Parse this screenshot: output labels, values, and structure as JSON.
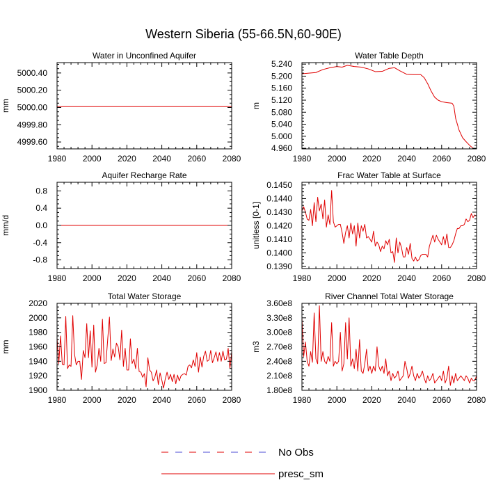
{
  "page": {
    "title": "Western Siberia (55-66.5N,60-90E)"
  },
  "legend": {
    "items": [
      {
        "label": "No Obs",
        "color": "#4b4bd6",
        "style": "dashed-blue-red"
      },
      {
        "label": "presc_sm",
        "color": "#e00000",
        "style": "solid"
      }
    ]
  },
  "chart_data": [
    {
      "type": "line",
      "title": "Water in Unconfined Aquifer",
      "xlabel": "",
      "ylabel": "mm",
      "xlim": [
        1980,
        2080
      ],
      "ylim": [
        4999.52,
        5000.52
      ],
      "xticks": [
        1980,
        2000,
        2020,
        2040,
        2060,
        2080
      ],
      "xtick_labels": [
        "1980",
        "2000",
        "2020",
        "2040",
        "2060",
        "2080"
      ],
      "yticks": [
        4999.6,
        4999.8,
        5000.0,
        5000.2,
        5000.4
      ],
      "ytick_labels": [
        "4999.60",
        "4999.80",
        "5000.00",
        "5000.20",
        "5000.40"
      ],
      "series": [
        {
          "name": "presc_sm",
          "color": "#e00000",
          "x": [
            1980,
            2000,
            2020,
            2040,
            2060,
            2080
          ],
          "y": [
            5000.01,
            5000.01,
            5000.01,
            5000.01,
            5000.01,
            5000.01
          ]
        }
      ]
    },
    {
      "type": "line",
      "title": "Water Table Depth",
      "xlabel": "",
      "ylabel": "m",
      "xlim": [
        1980,
        2080
      ],
      "ylim": [
        4.958,
        5.245
      ],
      "xticks": [
        1980,
        2000,
        2020,
        2040,
        2060,
        2080
      ],
      "xtick_labels": [
        "1980",
        "2000",
        "2020",
        "2040",
        "2060",
        "2080"
      ],
      "yticks": [
        4.96,
        5.0,
        5.04,
        5.08,
        5.12,
        5.16,
        5.2,
        5.24
      ],
      "ytick_labels": [
        "4.960",
        "5.000",
        "5.040",
        "5.080",
        "5.120",
        "5.160",
        "5.200",
        "5.240"
      ],
      "series": [
        {
          "name": "presc_sm",
          "color": "#e00000",
          "x": [
            1980,
            1984,
            1988,
            1992,
            1996,
            2000,
            2003,
            2006,
            2010,
            2014,
            2018,
            2022,
            2026,
            2030,
            2033,
            2036,
            2040,
            2044,
            2048,
            2050,
            2052,
            2054,
            2056,
            2058,
            2060,
            2063,
            2066,
            2067,
            2068,
            2070,
            2072,
            2074,
            2076,
            2078,
            2080
          ],
          "y": [
            5.208,
            5.21,
            5.212,
            5.222,
            5.228,
            5.232,
            5.23,
            5.236,
            5.232,
            5.23,
            5.224,
            5.215,
            5.216,
            5.226,
            5.228,
            5.218,
            5.206,
            5.205,
            5.205,
            5.195,
            5.175,
            5.15,
            5.13,
            5.12,
            5.115,
            5.112,
            5.11,
            5.1,
            5.06,
            5.02,
            4.995,
            4.982,
            4.97,
            4.96,
            4.958
          ]
        }
      ]
    },
    {
      "type": "line",
      "title": "Aquifer Recharge Rate",
      "xlabel": "",
      "ylabel": "mm/d",
      "xlim": [
        1980,
        2080
      ],
      "ylim": [
        -1.0,
        1.0
      ],
      "xticks": [
        1980,
        2000,
        2020,
        2040,
        2060,
        2080
      ],
      "xtick_labels": [
        "1980",
        "2000",
        "2020",
        "2040",
        "2060",
        "2080"
      ],
      "yticks": [
        -0.8,
        -0.4,
        0.0,
        0.4,
        0.8
      ],
      "ytick_labels": [
        "-0.8",
        "-0.4",
        "0.0",
        "0.4",
        "0.8"
      ],
      "series": [
        {
          "name": "presc_sm",
          "color": "#e00000",
          "x": [
            1980,
            2000,
            2020,
            2040,
            2060,
            2080
          ],
          "y": [
            0,
            0,
            0,
            0,
            0,
            0
          ]
        }
      ]
    },
    {
      "type": "line",
      "title": "Frac Water Table at Surface",
      "xlabel": "",
      "ylabel": "unitless [0-1]",
      "xlim": [
        1980,
        2080
      ],
      "ylim": [
        0.13885,
        0.1452
      ],
      "xticks": [
        1980,
        2000,
        2020,
        2040,
        2060,
        2080
      ],
      "xtick_labels": [
        "1980",
        "2000",
        "2020",
        "2040",
        "2060",
        "2080"
      ],
      "yticks": [
        0.139,
        0.14,
        0.141,
        0.142,
        0.143,
        0.144,
        0.145
      ],
      "ytick_labels": [
        "0.1390",
        "0.1400",
        "0.1410",
        "0.1420",
        "0.1430",
        "0.1440",
        "0.1450"
      ],
      "series": [
        {
          "name": "presc_sm",
          "color": "#e00000",
          "x": [
            1980,
            1981,
            1982,
            1983,
            1984,
            1985,
            1986,
            1987,
            1988,
            1989,
            1990,
            1991,
            1992,
            1993,
            1994,
            1995,
            1996,
            1997,
            1998,
            1999,
            2000,
            2001,
            2002,
            2003,
            2004,
            2005,
            2006,
            2007,
            2008,
            2009,
            2010,
            2011,
            2012,
            2013,
            2014,
            2015,
            2016,
            2017,
            2018,
            2019,
            2020,
            2021,
            2022,
            2023,
            2024,
            2025,
            2026,
            2027,
            2028,
            2029,
            2030,
            2031,
            2032,
            2033,
            2034,
            2035,
            2036,
            2037,
            2038,
            2039,
            2040,
            2041,
            2042,
            2043,
            2044,
            2045,
            2046,
            2047,
            2048,
            2049,
            2050,
            2051,
            2052,
            2053,
            2054,
            2055,
            2056,
            2057,
            2058,
            2059,
            2060,
            2061,
            2062,
            2063,
            2064,
            2065,
            2066,
            2067,
            2068,
            2069,
            2070,
            2071,
            2072,
            2073,
            2074,
            2075,
            2076,
            2077,
            2078,
            2079,
            2080
          ],
          "y": [
            0.1431,
            0.1434,
            0.143,
            0.1425,
            0.1424,
            0.1432,
            0.142,
            0.1437,
            0.1423,
            0.1441,
            0.1431,
            0.1436,
            0.1425,
            0.1439,
            0.1419,
            0.1428,
            0.1421,
            0.1446,
            0.1423,
            0.1419,
            0.142,
            0.1421,
            0.1421,
            0.1415,
            0.1407,
            0.1415,
            0.142,
            0.1411,
            0.1422,
            0.1414,
            0.142,
            0.1405,
            0.1422,
            0.1411,
            0.142,
            0.1416,
            0.1421,
            0.1411,
            0.1412,
            0.141,
            0.1408,
            0.1416,
            0.1405,
            0.1408,
            0.1406,
            0.1401,
            0.1405,
            0.1403,
            0.1409,
            0.1406,
            0.141,
            0.14,
            0.1401,
            0.1393,
            0.1411,
            0.14,
            0.1408,
            0.1404,
            0.1397,
            0.1397,
            0.1404,
            0.1399,
            0.1407,
            0.1396,
            0.1394,
            0.1397,
            0.1394,
            0.1395,
            0.1398,
            0.1399,
            0.1399,
            0.1399,
            0.1397,
            0.1405,
            0.1409,
            0.1413,
            0.1408,
            0.1413,
            0.141,
            0.1408,
            0.1406,
            0.1412,
            0.1406,
            0.1414,
            0.1404,
            0.1404,
            0.1406,
            0.1409,
            0.1414,
            0.1418,
            0.1418,
            0.142,
            0.142,
            0.1421,
            0.1425,
            0.1423,
            0.1424,
            0.1429,
            0.1426,
            0.1428,
            0.1427
          ]
        }
      ]
    },
    {
      "type": "line",
      "title": "Total Water Storage",
      "xlabel": "",
      "ylabel": "mm",
      "xlim": [
        1980,
        2080
      ],
      "ylim": [
        1900,
        2020
      ],
      "xticks": [
        1980,
        2000,
        2020,
        2040,
        2060,
        2080
      ],
      "xtick_labels": [
        "1980",
        "2000",
        "2020",
        "2040",
        "2060",
        "2080"
      ],
      "yticks": [
        1900,
        1920,
        1940,
        1960,
        1980,
        2000,
        2020
      ],
      "ytick_labels": [
        "1900",
        "1920",
        "1940",
        "1960",
        "1980",
        "2000",
        "2020"
      ],
      "series": [
        {
          "name": "presc_sm",
          "color": "#e00000",
          "x": [
            1980,
            1981,
            1982,
            1983,
            1984,
            1985,
            1986,
            1987,
            1988,
            1989,
            1990,
            1991,
            1992,
            1993,
            1994,
            1995,
            1996,
            1997,
            1998,
            1999,
            2000,
            2001,
            2002,
            2003,
            2004,
            2005,
            2006,
            2007,
            2008,
            2009,
            2010,
            2011,
            2012,
            2013,
            2014,
            2015,
            2016,
            2017,
            2018,
            2019,
            2020,
            2021,
            2022,
            2023,
            2024,
            2025,
            2026,
            2027,
            2028,
            2029,
            2030,
            2031,
            2032,
            2033,
            2034,
            2035,
            2036,
            2037,
            2038,
            2039,
            2040,
            2041,
            2042,
            2043,
            2044,
            2045,
            2046,
            2047,
            2048,
            2049,
            2050,
            2051,
            2052,
            2053,
            2054,
            2055,
            2056,
            2057,
            2058,
            2059,
            2060,
            2061,
            2062,
            2063,
            2064,
            2065,
            2066,
            2067,
            2068,
            2069,
            2070,
            2071,
            2072,
            2073,
            2074,
            2075,
            2076,
            2077,
            2078,
            2079,
            2080
          ],
          "y": [
            1972,
            1937,
            1975,
            1936,
            1935,
            2002,
            1930,
            1935,
            1933,
            2003,
            1950,
            1935,
            1940,
            1940,
            1915,
            1955,
            1945,
            1992,
            1945,
            1982,
            1932,
            1990,
            1925,
            1935,
            1958,
            1940,
            1998,
            1937,
            1938,
            1970,
            2001,
            1941,
            1957,
            1946,
            1965,
            1960,
            1942,
            1983,
            1933,
            1958,
            1928,
            1928,
            1971,
            1937,
            1943,
            1930,
            1958,
            1926,
            1925,
            1918,
            1923,
            1905,
            1945,
            1928,
            1925,
            1913,
            1918,
            1928,
            1908,
            1924,
            1914,
            1903,
            1916,
            1925,
            1915,
            1922,
            1912,
            1922,
            1909,
            1921,
            1913,
            1920,
            1922,
            1923,
            1921,
            1933,
            1935,
            1931,
            1942,
            1933,
            1952,
            1925,
            1946,
            1932,
            1947,
            1954,
            1940,
            1942,
            1955,
            1938,
            1945,
            1953,
            1940,
            1952,
            1940,
            1954,
            1942,
            1943,
            1958,
            1930,
            1953
          ]
        }
      ]
    },
    {
      "type": "line",
      "title": "River Channel Total Water Storage",
      "xlabel": "",
      "ylabel": "m3",
      "xlim": [
        1980,
        2080
      ],
      "ylim": [
        180000000.0,
        360000000.0
      ],
      "xticks": [
        1980,
        2000,
        2020,
        2040,
        2060,
        2080
      ],
      "xtick_labels": [
        "1980",
        "2000",
        "2020",
        "2040",
        "2060",
        "2080"
      ],
      "yticks": [
        180000000.0,
        210000000.0,
        240000000.0,
        270000000.0,
        300000000.0,
        330000000.0,
        360000000.0
      ],
      "ytick_labels": [
        "1.80e8",
        "2.10e8",
        "2.40e8",
        "2.70e8",
        "3.00e8",
        "3.30e8",
        "3.60e8"
      ],
      "series": [
        {
          "name": "presc_sm",
          "color": "#e00000",
          "x": [
            1980,
            1981,
            1982,
            1983,
            1984,
            1985,
            1986,
            1987,
            1988,
            1989,
            1990,
            1991,
            1992,
            1993,
            1994,
            1995,
            1996,
            1997,
            1998,
            1999,
            2000,
            2001,
            2002,
            2003,
            2004,
            2005,
            2006,
            2007,
            2008,
            2009,
            2010,
            2011,
            2012,
            2013,
            2014,
            2015,
            2016,
            2017,
            2018,
            2019,
            2020,
            2021,
            2022,
            2023,
            2024,
            2025,
            2026,
            2027,
            2028,
            2029,
            2030,
            2031,
            2032,
            2033,
            2034,
            2035,
            2036,
            2037,
            2038,
            2039,
            2040,
            2041,
            2042,
            2043,
            2044,
            2045,
            2046,
            2047,
            2048,
            2049,
            2050,
            2051,
            2052,
            2053,
            2054,
            2055,
            2056,
            2057,
            2058,
            2059,
            2060,
            2061,
            2062,
            2063,
            2064,
            2065,
            2066,
            2067,
            2068,
            2069,
            2070,
            2071,
            2072,
            2073,
            2074,
            2075,
            2076,
            2077,
            2078,
            2079,
            2080
          ],
          "y": [
            330000000.0,
            250000000.0,
            280000000.0,
            240000000.0,
            230000000.0,
            260000000.0,
            238000000.0,
            340000000.0,
            245000000.0,
            235000000.0,
            355000000.0,
            240000000.0,
            260000000.0,
            240000000.0,
            235000000.0,
            250000000.0,
            240000000.0,
            320000000.0,
            230000000.0,
            240000000.0,
            235000000.0,
            240000000.0,
            300000000.0,
            220000000.0,
            235000000.0,
            320000000.0,
            245000000.0,
            330000000.0,
            230000000.0,
            245000000.0,
            225000000.0,
            265000000.0,
            220000000.0,
            285000000.0,
            220000000.0,
            215000000.0,
            235000000.0,
            265000000.0,
            220000000.0,
            230000000.0,
            215000000.0,
            230000000.0,
            220000000.0,
            270000000.0,
            230000000.0,
            220000000.0,
            230000000.0,
            215000000.0,
            245000000.0,
            210000000.0,
            220000000.0,
            200000000.0,
            215000000.0,
            205000000.0,
            210000000.0,
            220000000.0,
            200000000.0,
            205000000.0,
            210000000.0,
            240000000.0,
            225000000.0,
            205000000.0,
            215000000.0,
            230000000.0,
            210000000.0,
            200000000.0,
            215000000.0,
            205000000.0,
            210000000.0,
            220000000.0,
            205000000.0,
            195000000.0,
            210000000.0,
            200000000.0,
            205000000.0,
            215000000.0,
            195000000.0,
            200000000.0,
            205000000.0,
            210000000.0,
            200000000.0,
            220000000.0,
            195000000.0,
            205000000.0,
            230000000.0,
            190000000.0,
            210000000.0,
            195000000.0,
            215000000.0,
            200000000.0,
            205000000.0,
            210000000.0,
            205000000.0,
            200000000.0,
            210000000.0,
            205000000.0,
            195000000.0,
            205000000.0,
            200000000.0,
            200000000.0,
            210000000.0
          ]
        }
      ]
    }
  ]
}
